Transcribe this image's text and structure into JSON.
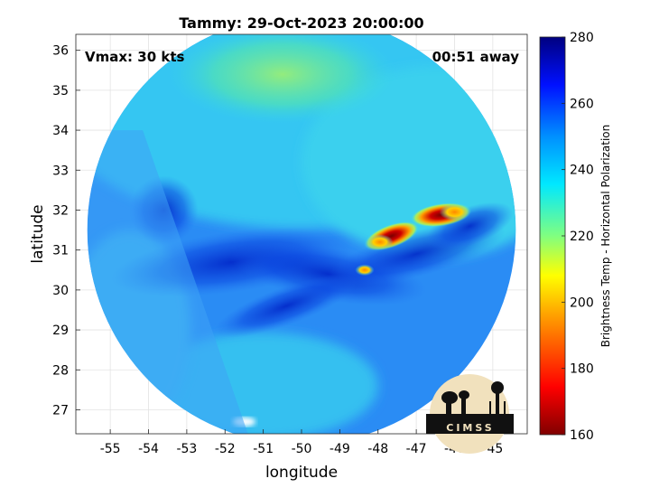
{
  "chart_data": {
    "type": "heatmap",
    "title": "Tammy: 29-Oct-2023 20:00:00",
    "xlabel": "longitude",
    "ylabel": "latitude",
    "xlim": [
      -55.9,
      -44.1
    ],
    "ylim": [
      26.4,
      36.4
    ],
    "x_ticks": [
      -55,
      -54,
      -53,
      -52,
      -51,
      -50,
      -49,
      -48,
      -47,
      -46,
      -45
    ],
    "y_ticks": [
      27,
      28,
      29,
      30,
      31,
      32,
      33,
      34,
      35,
      36
    ],
    "grid": true,
    "annotations": {
      "left": "Vmax: 30 kts",
      "right": "00:51 away"
    },
    "colorbar": {
      "label": "Brightness Temp - Horizontal Polarization",
      "range": [
        160,
        280
      ],
      "ticks": [
        160,
        180,
        200,
        220,
        240,
        260,
        280
      ],
      "colormap": "jet"
    },
    "swath": {
      "center": [
        -50.0,
        31.5
      ],
      "radius_deg": 5.6
    },
    "features": [
      {
        "label": "cold cell",
        "lon": -46.45,
        "lat": 31.85,
        "value": 170
      },
      {
        "label": "cold cell",
        "lon": -46.15,
        "lat": 31.9,
        "value": 185
      },
      {
        "label": "cold cell",
        "lon": -47.55,
        "lat": 31.45,
        "value": 175
      },
      {
        "label": "cold cell",
        "lon": -47.8,
        "lat": 31.25,
        "value": 190
      },
      {
        "label": "cold cell",
        "lon": -48.3,
        "lat": 30.5,
        "value": 215
      },
      {
        "label": "warm area",
        "lon": -50.5,
        "lat": 35.2,
        "value": 225
      },
      {
        "label": "warm band",
        "lon": -49.5,
        "lat": 30.6,
        "value": 262
      },
      {
        "label": "warm band",
        "lon": -52.0,
        "lat": 30.7,
        "value": 266
      }
    ]
  },
  "logo": {
    "text": "CIMSS"
  }
}
